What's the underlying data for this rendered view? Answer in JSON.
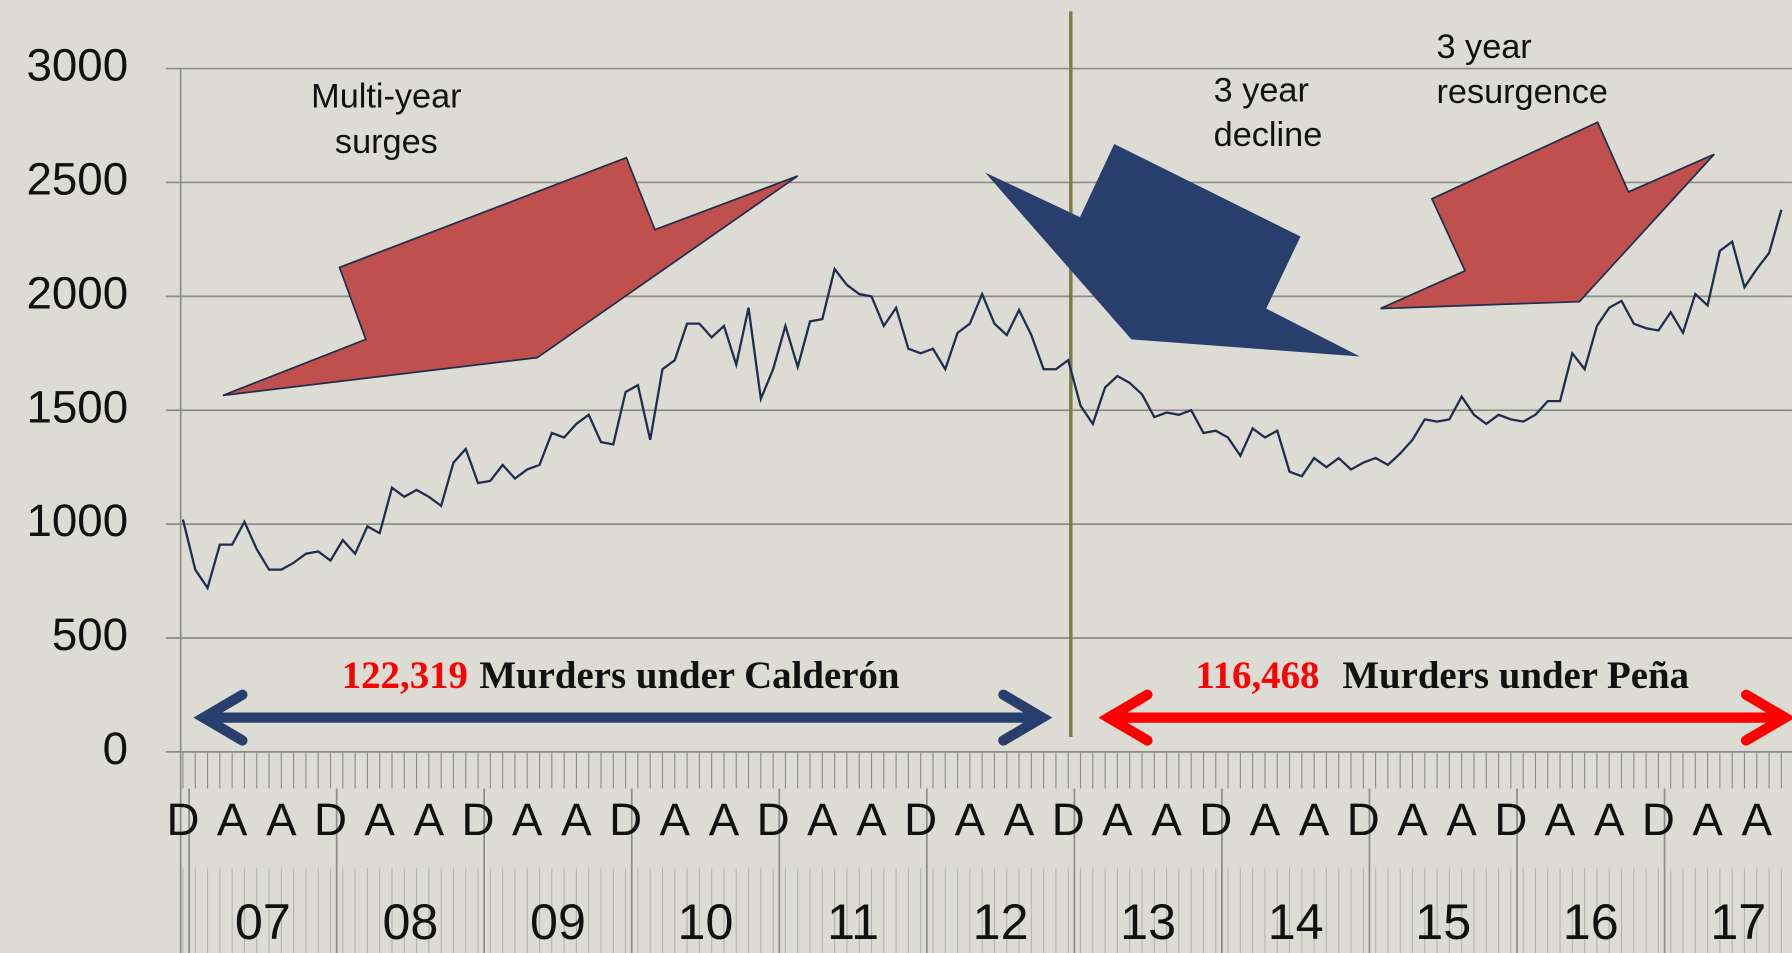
{
  "chart_data": {
    "type": "line",
    "categories": [
      "D",
      null,
      null,
      null,
      "A",
      null,
      null,
      null,
      "A",
      null,
      null,
      null,
      "D",
      null,
      null,
      null,
      "A",
      null,
      null,
      null,
      "A",
      null,
      null,
      null,
      "D",
      null,
      null,
      null,
      "A",
      null,
      null,
      null,
      "A",
      null,
      null,
      null,
      "D",
      null,
      null,
      null,
      "A",
      null,
      null,
      null,
      "A",
      null,
      null,
      null,
      "D",
      null,
      null,
      null,
      "A",
      null,
      null,
      null,
      "A",
      null,
      null,
      null,
      "D",
      null,
      null,
      null,
      "A",
      null,
      null,
      null,
      "A",
      null,
      null,
      null,
      "D",
      null,
      null,
      null,
      "A",
      null,
      null,
      null,
      "A",
      null,
      null,
      null,
      "D",
      null,
      null,
      null,
      "A",
      null,
      null,
      null,
      "A",
      null,
      null,
      null,
      "D",
      null,
      null,
      null,
      "A",
      null,
      null,
      null,
      "A",
      null,
      null,
      null,
      "D",
      null,
      null,
      null,
      "A",
      null,
      null,
      null,
      "A",
      null,
      null,
      null,
      "D",
      null,
      null,
      null,
      "A",
      null,
      null,
      null,
      "A",
      null,
      null
    ],
    "year_labels": [
      "07",
      "08",
      "09",
      "10",
      "11",
      "12",
      "13",
      "14",
      "15",
      "16",
      "17"
    ],
    "series": [
      {
        "color": "#1f2d4e",
        "values": [
          1020,
          800,
          720,
          910,
          910,
          1010,
          890,
          800,
          800,
          830,
          870,
          880,
          840,
          930,
          870,
          990,
          960,
          1160,
          1120,
          1150,
          1120,
          1080,
          1270,
          1330,
          1180,
          1190,
          1260,
          1200,
          1240,
          1260,
          1400,
          1380,
          1440,
          1480,
          1360,
          1350,
          1580,
          1610,
          1370,
          1680,
          1720,
          1880,
          1880,
          1820,
          1870,
          1700,
          1950,
          1550,
          1680,
          1870,
          1690,
          1890,
          1900,
          2120,
          2050,
          2010,
          2000,
          1870,
          1950,
          1770,
          1750,
          1770,
          1680,
          1840,
          1880,
          2010,
          1880,
          1830,
          1940,
          1830,
          1680,
          1680,
          1720,
          1520,
          1440,
          1600,
          1650,
          1620,
          1570,
          1470,
          1490,
          1480,
          1500,
          1400,
          1410,
          1380,
          1300,
          1420,
          1380,
          1410,
          1230,
          1210,
          1290,
          1250,
          1290,
          1240,
          1270,
          1290,
          1260,
          1310,
          1370,
          1460,
          1450,
          1460,
          1560,
          1480,
          1440,
          1480,
          1460,
          1450,
          1480,
          1540,
          1540,
          1750,
          1680,
          1870,
          1950,
          1980,
          1880,
          1860,
          1850,
          1930,
          1840,
          2010,
          1960,
          2200,
          2240,
          2040,
          2120,
          2190,
          2380
        ]
      }
    ],
    "ylim": [
      0,
      3000
    ],
    "yticks": [
      0,
      500,
      1000,
      1500,
      2000,
      2500,
      3000
    ],
    "grid": true,
    "annotations": {
      "surges": [
        "Multi-year",
        "surges"
      ],
      "decline": [
        "3 year",
        "decline"
      ],
      "resurgence": [
        "3 year",
        "resurgence"
      ]
    },
    "calderon": {
      "count": "122,319",
      "text": "Murders under Calderón"
    },
    "pena": {
      "count": "116,468",
      "text": "Murders under Peña"
    }
  }
}
